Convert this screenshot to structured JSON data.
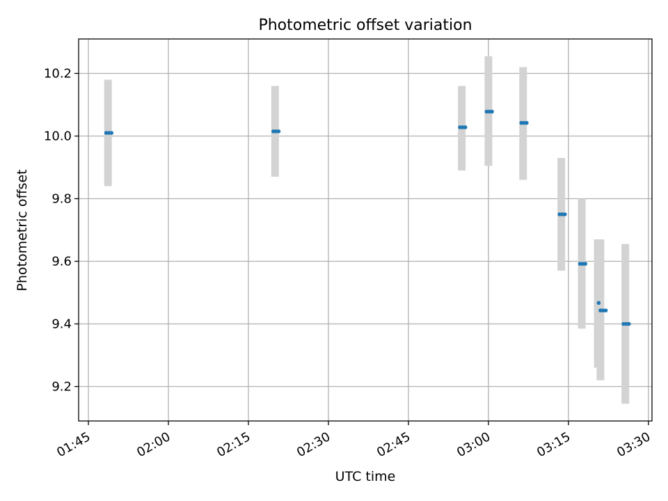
{
  "chart_data": {
    "type": "scatter",
    "title": "Photometric offset variation",
    "xlabel": "UTC time",
    "ylabel": "Photometric offset",
    "x_ticks": [
      "01:45",
      "02:00",
      "02:15",
      "02:30",
      "02:45",
      "03:00",
      "03:15",
      "03:30"
    ],
    "y_ticks": [
      "9.2",
      "9.4",
      "9.6",
      "9.8",
      "10.0",
      "10.2"
    ],
    "xlim": [
      "01:43:10",
      "03:30:40"
    ],
    "ylim": [
      9.09,
      10.31
    ],
    "grid": true,
    "colors": {
      "points": "#1f77b4",
      "error_bars": "#d3d3d3"
    },
    "error_bars": [
      {
        "time": "01:48:40",
        "low": 9.84,
        "high": 10.18
      },
      {
        "time": "02:20:00",
        "low": 9.87,
        "high": 10.16
      },
      {
        "time": "02:55:00",
        "low": 9.89,
        "high": 10.16
      },
      {
        "time": "03:00:00",
        "low": 9.905,
        "high": 10.255
      },
      {
        "time": "03:06:30",
        "low": 9.86,
        "high": 10.22
      },
      {
        "time": "03:13:40",
        "low": 9.57,
        "high": 9.93
      },
      {
        "time": "03:17:30",
        "low": 9.385,
        "high": 9.8
      },
      {
        "time": "03:20:30",
        "low": 9.26,
        "high": 9.67
      },
      {
        "time": "03:21:00",
        "low": 9.22,
        "high": 9.67
      },
      {
        "time": "03:25:40",
        "low": 9.145,
        "high": 9.655
      }
    ],
    "points": [
      {
        "time": "01:48:20",
        "value": 10.01
      },
      {
        "time": "01:48:50",
        "value": 10.01
      },
      {
        "time": "01:49:20",
        "value": 10.01
      },
      {
        "time": "02:19:40",
        "value": 10.015
      },
      {
        "time": "02:20:10",
        "value": 10.015
      },
      {
        "time": "02:20:40",
        "value": 10.015
      },
      {
        "time": "02:54:40",
        "value": 10.028
      },
      {
        "time": "02:55:10",
        "value": 10.028
      },
      {
        "time": "02:55:40",
        "value": 10.028
      },
      {
        "time": "02:59:40",
        "value": 10.078
      },
      {
        "time": "03:00:10",
        "value": 10.078
      },
      {
        "time": "03:00:40",
        "value": 10.078
      },
      {
        "time": "03:06:10",
        "value": 10.042
      },
      {
        "time": "03:06:40",
        "value": 10.042
      },
      {
        "time": "03:07:10",
        "value": 10.042
      },
      {
        "time": "03:13:20",
        "value": 9.75
      },
      {
        "time": "03:13:50",
        "value": 9.75
      },
      {
        "time": "03:14:20",
        "value": 9.75
      },
      {
        "time": "03:17:10",
        "value": 9.592
      },
      {
        "time": "03:17:40",
        "value": 9.592
      },
      {
        "time": "03:18:10",
        "value": 9.592
      },
      {
        "time": "03:20:40",
        "value": 9.467
      },
      {
        "time": "03:21:00",
        "value": 9.443
      },
      {
        "time": "03:21:30",
        "value": 9.443
      },
      {
        "time": "03:22:00",
        "value": 9.443
      },
      {
        "time": "03:25:20",
        "value": 9.4
      },
      {
        "time": "03:25:50",
        "value": 9.4
      },
      {
        "time": "03:26:20",
        "value": 9.4
      }
    ]
  }
}
